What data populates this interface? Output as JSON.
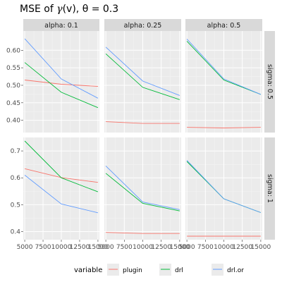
{
  "chart_data": {
    "type": "line",
    "title_main": "MSE of ",
    "title_gamma": "γ",
    "title_rest": "(v), θ = 0.3",
    "x_ticks": [
      "5000",
      "7500",
      "10000",
      "12500",
      "15000"
    ],
    "x": [
      5000,
      10000,
      15000
    ],
    "xlim": [
      4800,
      15200
    ],
    "legend": {
      "title": "variable",
      "position": "bottom",
      "entries": [
        "plugin",
        "drl",
        "drl.or"
      ]
    },
    "colors": {
      "plugin": "#f8766d",
      "drl": "#00ba38",
      "drl.or": "#619cff"
    },
    "columns": [
      {
        "label": "alpha: 0.1",
        "alpha": 0.1
      },
      {
        "label": "alpha: 0.25",
        "alpha": 0.25
      },
      {
        "label": "alpha: 0.5",
        "alpha": 0.5
      }
    ],
    "rows": [
      {
        "label": "sigma: 0.5",
        "ylim": [
          0.365,
          0.655
        ],
        "y_ticks": [
          "0.40",
          "0.45",
          "0.50",
          "0.55",
          "0.60"
        ],
        "y_tick_values": [
          0.4,
          0.45,
          0.5,
          0.55,
          0.6
        ],
        "panels": [
          {
            "series": [
              {
                "name": "plugin",
                "values": [
                  0.515,
                  0.503,
                  0.497
                ]
              },
              {
                "name": "drl",
                "values": [
                  0.565,
                  0.48,
                  0.436
                ]
              },
              {
                "name": "drl.or",
                "values": [
                  0.633,
                  0.518,
                  0.463
                ]
              }
            ]
          },
          {
            "series": [
              {
                "name": "plugin",
                "values": [
                  0.396,
                  0.391,
                  0.391
                ]
              },
              {
                "name": "drl",
                "values": [
                  0.59,
                  0.494,
                  0.459
                ]
              },
              {
                "name": "drl.or",
                "values": [
                  0.609,
                  0.512,
                  0.471
                ]
              }
            ]
          },
          {
            "series": [
              {
                "name": "plugin",
                "values": [
                  0.38,
                  0.378,
                  0.38
                ]
              },
              {
                "name": "drl",
                "values": [
                  0.626,
                  0.515,
                  0.474
                ]
              },
              {
                "name": "drl.or",
                "values": [
                  0.632,
                  0.518,
                  0.474
                ]
              }
            ]
          }
        ]
      },
      {
        "label": "sigma: 1",
        "ylim": [
          0.37,
          0.75
        ],
        "y_ticks": [
          "0.4",
          "0.5",
          "0.6",
          "0.7"
        ],
        "y_tick_values": [
          0.4,
          0.5,
          0.6,
          0.7
        ],
        "panels": [
          {
            "series": [
              {
                "name": "plugin",
                "values": [
                  0.634,
                  0.601,
                  0.583
                ]
              },
              {
                "name": "drl",
                "values": [
                  0.737,
                  0.6,
                  0.548
                ]
              },
              {
                "name": "drl.or",
                "values": [
                  0.61,
                  0.503,
                  0.47
                ]
              }
            ]
          },
          {
            "series": [
              {
                "name": "plugin",
                "values": [
                  0.397,
                  0.393,
                  0.393
                ]
              },
              {
                "name": "drl",
                "values": [
                  0.617,
                  0.505,
                  0.477
                ]
              },
              {
                "name": "drl.or",
                "values": [
                  0.644,
                  0.51,
                  0.482
                ]
              }
            ]
          },
          {
            "series": [
              {
                "name": "plugin",
                "values": [
                  0.383,
                  0.383,
                  0.383
                ]
              },
              {
                "name": "drl",
                "values": [
                  0.661,
                  0.522,
                  0.471
                ]
              },
              {
                "name": "drl.or",
                "values": [
                  0.665,
                  0.522,
                  0.471
                ]
              }
            ]
          }
        ]
      }
    ]
  }
}
